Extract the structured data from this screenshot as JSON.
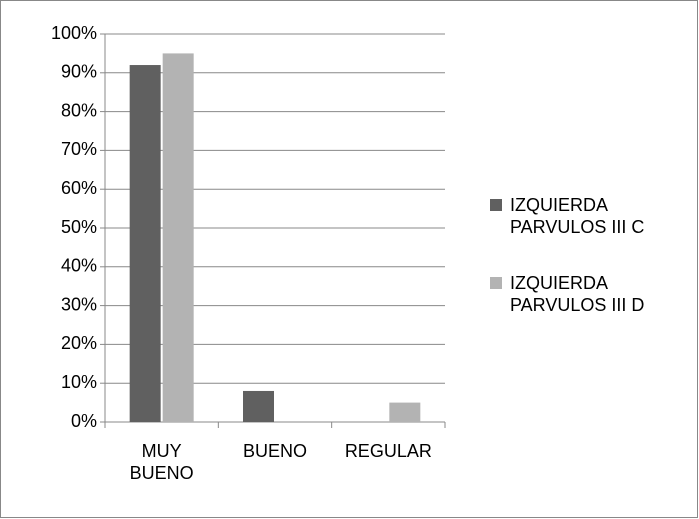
{
  "chart_data": {
    "type": "bar",
    "categories": [
      "MUY BUENO",
      "BUENO",
      "REGULAR"
    ],
    "series": [
      {
        "name": "IZQUIERDA PARVULOS III C",
        "color": "#606060",
        "values": [
          92,
          8,
          0
        ]
      },
      {
        "name": "IZQUIERDA PARVULOS III D",
        "color": "#b3b3b3",
        "values": [
          95,
          0,
          5
        ]
      }
    ],
    "ylim": [
      0,
      100
    ],
    "yticks": [
      {
        "value": 0,
        "label": "0%"
      },
      {
        "value": 10,
        "label": "10%"
      },
      {
        "value": 20,
        "label": "20%"
      },
      {
        "value": 30,
        "label": "30%"
      },
      {
        "value": 40,
        "label": "40%"
      },
      {
        "value": 50,
        "label": "50%"
      },
      {
        "value": 60,
        "label": "60%"
      },
      {
        "value": 70,
        "label": "70%"
      },
      {
        "value": 80,
        "label": "80%"
      },
      {
        "value": 90,
        "label": "90%"
      },
      {
        "value": 100,
        "label": "100%"
      }
    ],
    "grid": true,
    "legend": "right"
  }
}
